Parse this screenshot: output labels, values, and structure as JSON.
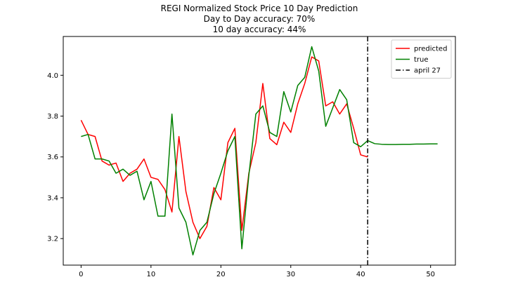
{
  "chart_data": {
    "type": "line",
    "title_lines": [
      "REGI Normalized Stock Price 10 Day Prediction",
      "Day to Day accuracy: 70%",
      "10 day accuracy: 44%"
    ],
    "xlabel": "",
    "ylabel": "",
    "xlim": [
      -2.55,
      53.55
    ],
    "ylim": [
      3.07,
      4.19
    ],
    "xticks": [
      0,
      10,
      20,
      30,
      40,
      50
    ],
    "yticks": [
      3.2,
      3.4,
      3.6,
      3.8,
      4.0
    ],
    "ytick_labels": [
      "3.2",
      "3.4",
      "3.6",
      "3.8",
      "4.0"
    ],
    "grid": false,
    "legend_position": "top-right",
    "series": [
      {
        "name": "predicted",
        "color": "#ff0000",
        "x": [
          0,
          1,
          2,
          3,
          4,
          5,
          6,
          7,
          8,
          9,
          10,
          11,
          12,
          13,
          14,
          15,
          16,
          17,
          18,
          19,
          20,
          21,
          22,
          23,
          24,
          25,
          26,
          27,
          28,
          29,
          30,
          31,
          32,
          33,
          34,
          35,
          36,
          37,
          38,
          39,
          40,
          41
        ],
        "y": [
          3.78,
          3.71,
          3.7,
          3.58,
          3.56,
          3.57,
          3.48,
          3.52,
          3.54,
          3.59,
          3.5,
          3.49,
          3.44,
          3.33,
          3.7,
          3.43,
          3.28,
          3.2,
          3.26,
          3.45,
          3.39,
          3.67,
          3.74,
          3.24,
          3.52,
          3.67,
          3.96,
          3.69,
          3.66,
          3.77,
          3.72,
          3.86,
          3.96,
          4.09,
          4.07,
          3.85,
          3.87,
          3.81,
          3.86,
          3.74,
          3.61,
          3.6
        ]
      },
      {
        "name": "true",
        "color": "#008000",
        "x": [
          0,
          1,
          2,
          3,
          4,
          5,
          6,
          7,
          8,
          9,
          10,
          11,
          12,
          13,
          14,
          15,
          16,
          17,
          18,
          19,
          20,
          21,
          22,
          23,
          24,
          25,
          26,
          27,
          28,
          29,
          30,
          31,
          32,
          33,
          34,
          35,
          36,
          37,
          38,
          39,
          40,
          41,
          42,
          43,
          44,
          45,
          46,
          47,
          48,
          49,
          50,
          51
        ],
        "y": [
          3.7,
          3.71,
          3.59,
          3.59,
          3.58,
          3.52,
          3.54,
          3.51,
          3.53,
          3.39,
          3.48,
          3.31,
          3.31,
          3.81,
          3.35,
          3.28,
          3.12,
          3.24,
          3.28,
          3.42,
          3.52,
          3.63,
          3.7,
          3.15,
          3.51,
          3.81,
          3.85,
          3.72,
          3.7,
          3.92,
          3.82,
          3.95,
          3.99,
          4.14,
          4.02,
          3.75,
          3.84,
          3.93,
          3.88,
          3.67,
          3.65,
          3.68,
          3.665,
          3.662,
          3.661,
          3.661,
          3.662,
          3.662,
          3.663,
          3.663,
          3.664,
          3.664
        ]
      }
    ],
    "annotations": [
      {
        "type": "vline",
        "x": 41,
        "label": "april 27",
        "color": "#000000",
        "style": "dashdot"
      }
    ]
  }
}
